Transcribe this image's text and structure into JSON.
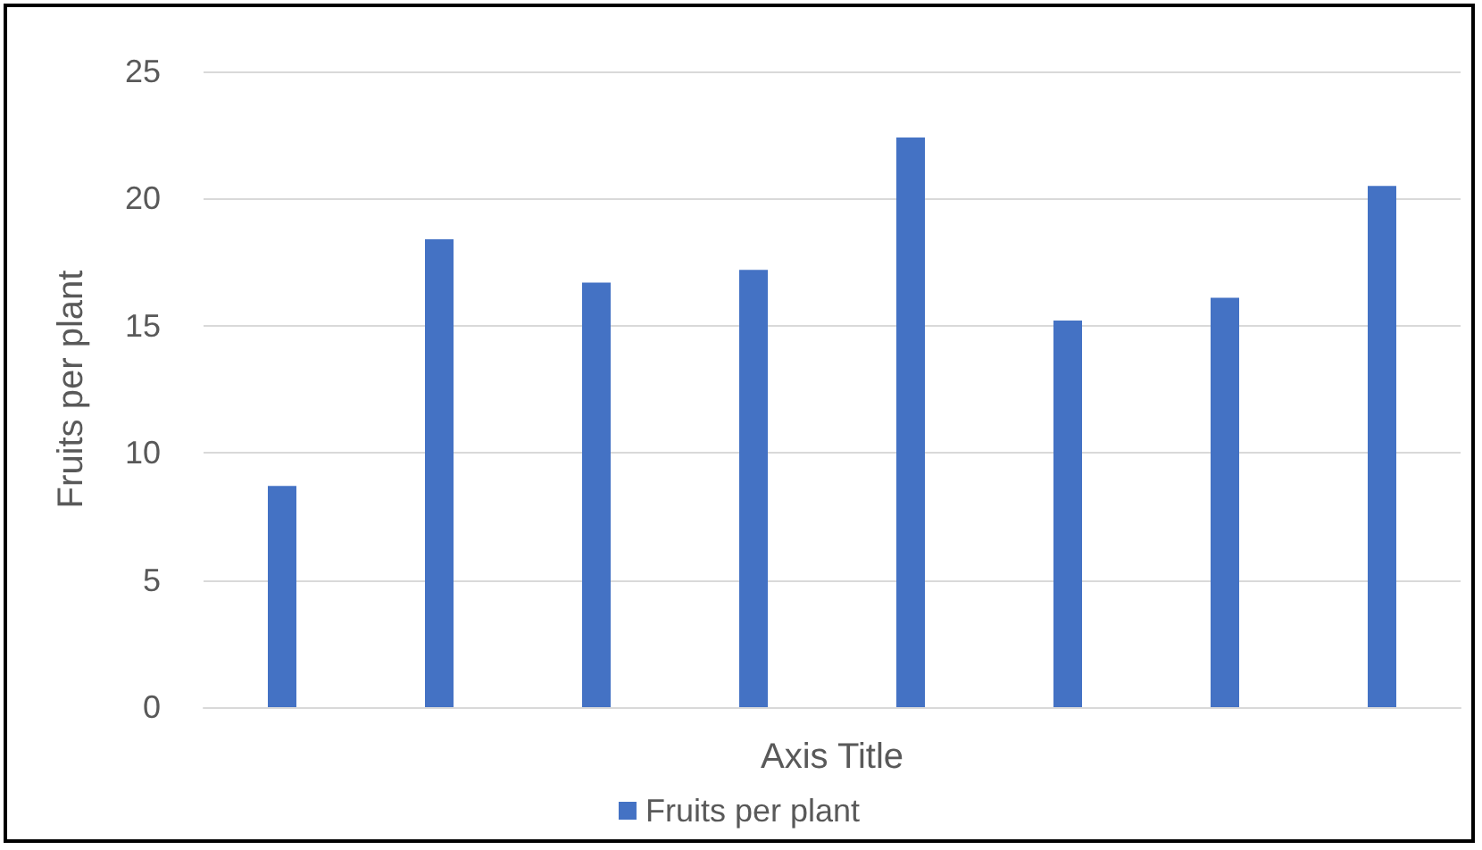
{
  "chart_data": {
    "type": "bar",
    "xlabel": "Axis Title",
    "ylabel": "Fruits per plant",
    "categories": [
      null,
      null,
      null,
      null,
      null,
      null,
      null,
      null
    ],
    "series": [
      {
        "name": "Fruits per plant",
        "color": "#4472c4",
        "values": [
          8.7,
          18.4,
          16.7,
          17.2,
          22.4,
          15.2,
          16.1,
          20.5
        ]
      }
    ],
    "ylim": [
      0,
      25
    ],
    "yticks": [
      0,
      5,
      10,
      15,
      20,
      25
    ],
    "grid": "y",
    "legend": "bottom"
  }
}
